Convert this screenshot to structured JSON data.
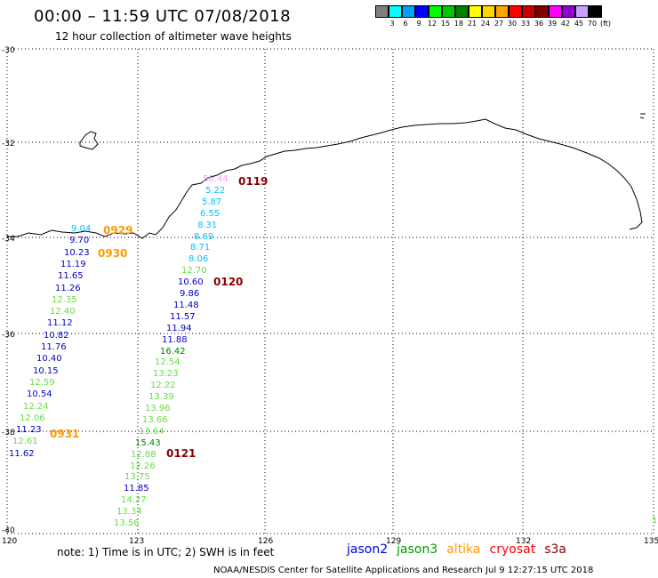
{
  "header": {
    "title": "00:00 – 11:59 UTC 07/08/2018",
    "subtitle": "12 hour collection of altimeter wave heights"
  },
  "color_scale": {
    "colors": [
      "#808080",
      "#00ffff",
      "#00a0ff",
      "#0000ff",
      "#00ff00",
      "#00c800",
      "#008000",
      "#ffff00",
      "#ffd700",
      "#ffa500",
      "#ff0000",
      "#c80000",
      "#800000",
      "#ff00ff",
      "#9400d3",
      "#c8a0ff",
      "#000000"
    ],
    "ticks": [
      "3",
      "6",
      "9",
      "12",
      "15",
      "18",
      "21",
      "24",
      "27",
      "30",
      "33",
      "36",
      "39",
      "42",
      "45",
      "70",
      "(ft)"
    ]
  },
  "axes": {
    "lat_labels": [
      "-30",
      "-32",
      "-34",
      "-36",
      "-38",
      "-40"
    ],
    "lon_labels": [
      "120",
      "123",
      "126",
      "129",
      "132",
      "135"
    ]
  },
  "passes": [
    {
      "label": "0119",
      "color": "#8b0000"
    },
    {
      "label": "0929",
      "color": "#ff9900"
    },
    {
      "label": "0930",
      "color": "#ff9900"
    },
    {
      "label": "0120",
      "color": "#8b0000"
    },
    {
      "label": "0931",
      "color": "#ff9900"
    },
    {
      "label": "0121",
      "color": "#8b0000"
    }
  ],
  "track_a": [
    {
      "v": "9.04",
      "c": "#00bfff"
    },
    {
      "v": "9.70",
      "c": "#0000c8"
    },
    {
      "v": "10.23",
      "c": "#0000c8"
    },
    {
      "v": "11.19",
      "c": "#0000c8"
    },
    {
      "v": "11.65",
      "c": "#0000c8"
    },
    {
      "v": "11.26",
      "c": "#0000c8"
    },
    {
      "v": "12.35",
      "c": "#66dd44"
    },
    {
      "v": "12.40",
      "c": "#66dd44"
    },
    {
      "v": "11.12",
      "c": "#0000c8"
    },
    {
      "v": "10.82",
      "c": "#0000c8"
    },
    {
      "v": "11.76",
      "c": "#0000c8"
    },
    {
      "v": "10.40",
      "c": "#0000c8"
    },
    {
      "v": "10.15",
      "c": "#0000c8"
    },
    {
      "v": "12.59",
      "c": "#66dd44"
    },
    {
      "v": "10.54",
      "c": "#0000c8"
    },
    {
      "v": "12.24",
      "c": "#66dd44"
    },
    {
      "v": "12.06",
      "c": "#66dd44"
    },
    {
      "v": "11.23",
      "c": "#0000c8"
    },
    {
      "v": "12.61",
      "c": "#66dd44"
    },
    {
      "v": "11.62",
      "c": "#0000c8"
    }
  ],
  "track_b": [
    {
      "v": "56.44",
      "c": "#ff99ff"
    },
    {
      "v": "5.22",
      "c": "#00bfff"
    },
    {
      "v": "5.87",
      "c": "#00bfff"
    },
    {
      "v": "6.55",
      "c": "#00bfff"
    },
    {
      "v": "8.31",
      "c": "#00bfff"
    },
    {
      "v": "8.69",
      "c": "#00bfff"
    },
    {
      "v": "8.71",
      "c": "#00bfff"
    },
    {
      "v": "8.06",
      "c": "#00bfff"
    },
    {
      "v": "12.70",
      "c": "#66dd44"
    },
    {
      "v": "10.60",
      "c": "#0000c8"
    },
    {
      "v": "9.86",
      "c": "#0000c8"
    },
    {
      "v": "11.48",
      "c": "#0000c8"
    },
    {
      "v": "11.57",
      "c": "#0000c8"
    },
    {
      "v": "11.94",
      "c": "#0000c8"
    },
    {
      "v": "11.88",
      "c": "#0000c8"
    },
    {
      "v": "16.42",
      "c": "#008000"
    },
    {
      "v": "12.54",
      "c": "#66dd44"
    },
    {
      "v": "13.23",
      "c": "#66dd44"
    },
    {
      "v": "12.22",
      "c": "#66dd44"
    },
    {
      "v": "13.39",
      "c": "#66dd44"
    },
    {
      "v": "13.96",
      "c": "#66dd44"
    },
    {
      "v": "13.66",
      "c": "#66dd44"
    },
    {
      "v": "13.64",
      "c": "#66dd44"
    },
    {
      "v": "15.43",
      "c": "#008000"
    },
    {
      "v": "12.88",
      "c": "#66dd44"
    },
    {
      "v": "12.26",
      "c": "#66dd44"
    },
    {
      "v": "13.75",
      "c": "#66dd44"
    },
    {
      "v": "11.85",
      "c": "#0000c8"
    },
    {
      "v": "14.27",
      "c": "#66dd44"
    },
    {
      "v": "13.34",
      "c": "#66dd44"
    },
    {
      "v": "13.56",
      "c": "#66dd44"
    }
  ],
  "edge_value": {
    "v": "1",
    "c": "#66dd44"
  },
  "note": "note: 1) Time is in UTC; 2) SWH is in feet",
  "satellites": [
    {
      "name": "jason2",
      "color": "#0000dd"
    },
    {
      "name": "jason3",
      "color": "#009900"
    },
    {
      "name": "altika",
      "color": "#ff9900"
    },
    {
      "name": "cryosat",
      "color": "#ff0000"
    },
    {
      "name": "s3a",
      "color": "#880000"
    }
  ],
  "footer": "NOAA/NESDIS Center for Satellite Applications and Research   Jul  9 12:27:15 UTC 2018"
}
